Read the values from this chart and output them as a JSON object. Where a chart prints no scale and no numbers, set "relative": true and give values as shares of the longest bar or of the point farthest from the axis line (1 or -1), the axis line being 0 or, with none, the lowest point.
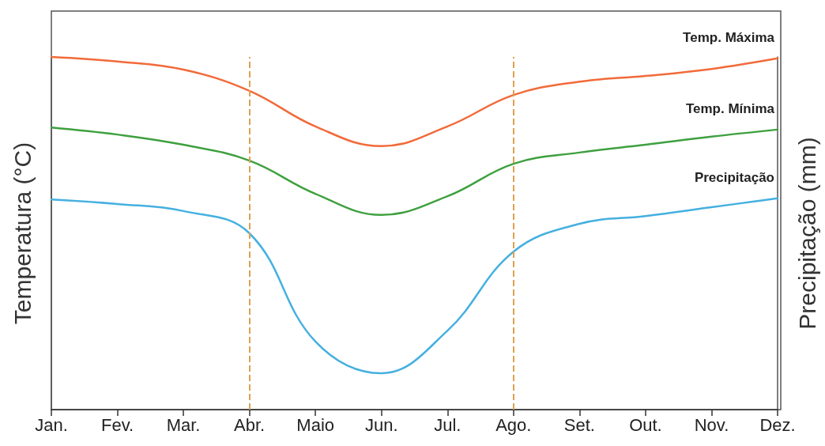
{
  "chart_data": {
    "type": "line",
    "relative": true,
    "ylabel": "Temperatura (°C)",
    "y2label": "Precipitação (mm)",
    "categories": [
      "Jan.",
      "Fev.",
      "Mar.",
      "Abr.",
      "Maio",
      "Jun.",
      "Jul.",
      "Ago.",
      "Set.",
      "Out.",
      "Nov.",
      "Dez."
    ],
    "series": [
      {
        "name": "Temp. Máxima",
        "color": "#f26a3a",
        "values": [
          1.0,
          0.987,
          0.964,
          0.904,
          0.803,
          0.747,
          0.803,
          0.892,
          0.93,
          0.946,
          0.966,
          0.996
        ]
      },
      {
        "name": "Temp. Mínima",
        "color": "#3fa040",
        "values": [
          0.8,
          0.78,
          0.751,
          0.706,
          0.612,
          0.552,
          0.605,
          0.697,
          0.729,
          0.751,
          0.774,
          0.794
        ]
      },
      {
        "name": "Precipitação",
        "color": "#45b0e0",
        "axis": "y2",
        "values": [
          0.596,
          0.583,
          0.563,
          0.5,
          0.193,
          0.103,
          0.224,
          0.448,
          0.527,
          0.549,
          0.574,
          0.599
        ]
      }
    ],
    "ref_lines": [
      {
        "axis": "x",
        "value": "Abr.",
        "color": "#e0a050",
        "line_style": "dashed"
      },
      {
        "axis": "x",
        "value": "Ago.",
        "color": "#e0a050",
        "line_style": "dashed"
      }
    ],
    "grid": false,
    "legend": false,
    "marker": "none",
    "line_style": "solid"
  }
}
